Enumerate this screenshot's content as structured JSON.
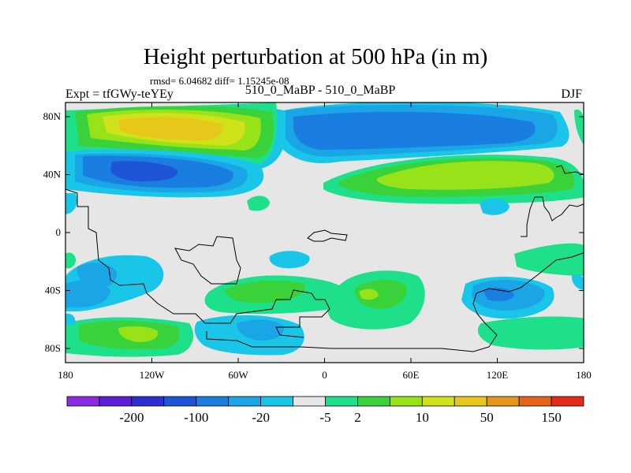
{
  "chart_data": {
    "type": "heatmap",
    "title": "Height perturbation at 500 hPa (in m)",
    "stats": "rmsd= 6.04682 diff= 1.15245e-08",
    "left_label": "Expt = tfGWy-teYEy",
    "center_label": "510_0_MaBP - 510_0_MaBP",
    "right_label": "DJF",
    "x_ticks": [
      {
        "lon": -180,
        "label": "180"
      },
      {
        "lon": -120,
        "label": "120W"
      },
      {
        "lon": -60,
        "label": "60W"
      },
      {
        "lon": 0,
        "label": "0"
      },
      {
        "lon": 60,
        "label": "60E"
      },
      {
        "lon": 120,
        "label": "120E"
      },
      {
        "lon": 180,
        "label": "180"
      }
    ],
    "y_ticks": [
      {
        "lat": 80,
        "label": "80N"
      },
      {
        "lat": 40,
        "label": "40N"
      },
      {
        "lat": 0,
        "label": "0"
      },
      {
        "lat": -40,
        "label": "40S"
      },
      {
        "lat": -80,
        "label": "80S"
      }
    ],
    "colorbar": {
      "colors": [
        "#8a2be2",
        "#5a1fd6",
        "#2b2fd0",
        "#1e55d8",
        "#1a7ee0",
        "#1aa6e6",
        "#19c6e8",
        "#e6e6e6",
        "#1ee08a",
        "#3ad23a",
        "#98e21a",
        "#cfe21a",
        "#e6c81a",
        "#e6961a",
        "#e6641a",
        "#e62a1a"
      ],
      "labels": [
        {
          "after_index": 1,
          "text": "-200"
        },
        {
          "after_index": 3,
          "text": "-100"
        },
        {
          "after_index": 5,
          "text": "-20"
        },
        {
          "after_index": 7,
          "text": "-5"
        },
        {
          "after_index": 8,
          "text": "2"
        },
        {
          "after_index": 10,
          "text": "10"
        },
        {
          "after_index": 12,
          "text": "50"
        },
        {
          "after_index": 14,
          "text": "150"
        }
      ]
    }
  }
}
